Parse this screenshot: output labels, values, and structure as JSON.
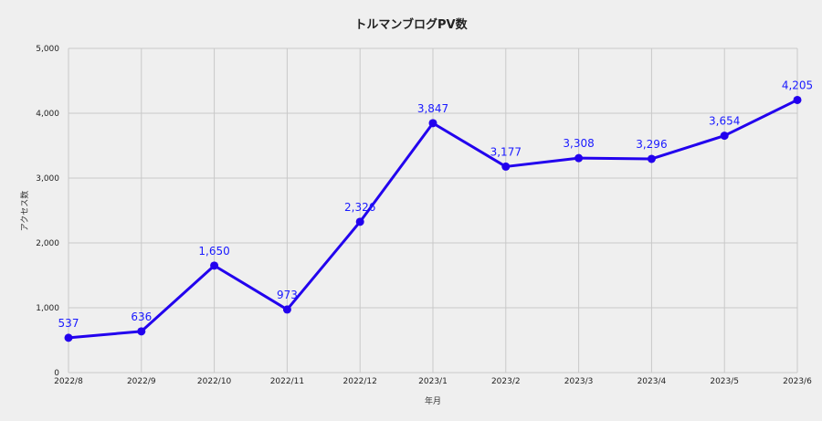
{
  "chart_data": {
    "type": "line",
    "title": "トルマンブログPV数",
    "xlabel": "年月",
    "ylabel": "アクセス数",
    "categories": [
      "2022/8",
      "2022/9",
      "2022/10",
      "2022/11",
      "2022/12",
      "2023/1",
      "2023/2",
      "2023/3",
      "2023/4",
      "2023/5",
      "2023/6"
    ],
    "series": [
      {
        "values": [
          537,
          636,
          1650,
          973,
          2326,
          3847,
          3177,
          3308,
          3296,
          3654,
          4205
        ],
        "data_labels": [
          "537",
          "636",
          "1,650",
          "973",
          "2,326",
          "3,847",
          "3,177",
          "3,308",
          "3,296",
          "3,654",
          "4,205"
        ]
      }
    ],
    "ylim": [
      0,
      5000
    ],
    "y_ticks": [
      0,
      1000,
      2000,
      3000,
      4000,
      5000
    ],
    "y_tick_labels": [
      "0",
      "1,000",
      "2,000",
      "3,000",
      "4,000",
      "5,000"
    ],
    "grid": true,
    "legend": "none",
    "colors": {
      "series": "#2200ee",
      "label": "#1a1aff",
      "grid": "#c8c8c8",
      "background": "#efefef"
    }
  }
}
